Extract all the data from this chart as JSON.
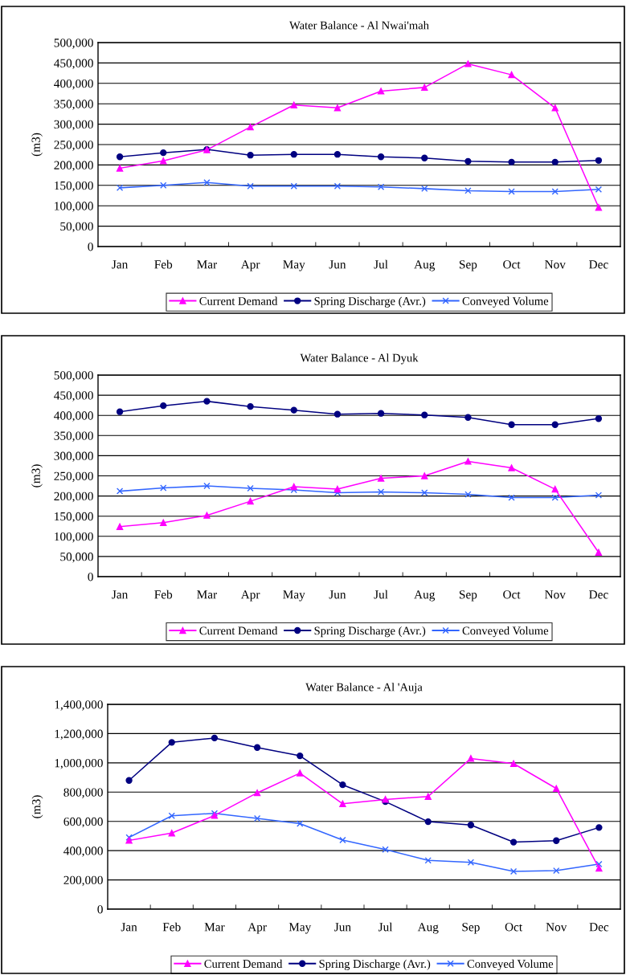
{
  "chart_data": [
    {
      "type": "line",
      "title": "Water Balance - Al Nwai'mah",
      "ylabel": "(m3)",
      "categories": [
        "Jan",
        "Feb",
        "Mar",
        "Apr",
        "May",
        "Jun",
        "Jul",
        "Aug",
        "Sep",
        "Oct",
        "Nov",
        "Dec"
      ],
      "series": [
        {
          "name": "Current Demand",
          "color": "#ff00ff",
          "marker": "triangle",
          "values": [
            192000,
            210000,
            237000,
            293000,
            347000,
            340000,
            381000,
            390000,
            448000,
            421000,
            340000,
            96000
          ]
        },
        {
          "name": "Spring Discharge (Avr.)",
          "color": "#000080",
          "marker": "circle",
          "values": [
            220000,
            230000,
            238000,
            224000,
            226000,
            226000,
            220000,
            217000,
            209000,
            207000,
            207000,
            211000
          ]
        },
        {
          "name": "Conveyed Volume",
          "color": "#3366ff",
          "marker": "cross",
          "values": [
            144000,
            150000,
            157000,
            148000,
            148000,
            148000,
            146000,
            142000,
            137000,
            135000,
            135000,
            140000
          ]
        }
      ],
      "ylim": [
        0,
        500000
      ],
      "yticks": [
        {
          "value": 0,
          "label": "0"
        },
        {
          "value": 50000,
          "label": "50,000"
        },
        {
          "value": 100000,
          "label": "100,000"
        },
        {
          "value": 150000,
          "label": "150,000"
        },
        {
          "value": 200000,
          "label": "200,000"
        },
        {
          "value": 250000,
          "label": "250,000"
        },
        {
          "value": 300000,
          "label": "300,000"
        },
        {
          "value": 350000,
          "label": "350,000"
        },
        {
          "value": 400000,
          "label": "400,000"
        },
        {
          "value": 450000,
          "label": "450,000"
        },
        {
          "value": 500000,
          "label": "500,000"
        }
      ],
      "grid": "y",
      "legend": "bottom",
      "line_style": "solid"
    },
    {
      "type": "line",
      "title": "Water Balance - Al Dyuk",
      "ylabel": "(m3)",
      "categories": [
        "Jan",
        "Feb",
        "Mar",
        "Apr",
        "May",
        "Jun",
        "Jul",
        "Aug",
        "Sep",
        "Oct",
        "Nov",
        "Dec"
      ],
      "series": [
        {
          "name": "Current Demand",
          "color": "#ff00ff",
          "marker": "triangle",
          "values": [
            124000,
            134000,
            152000,
            187000,
            223000,
            217000,
            244000,
            250000,
            286000,
            270000,
            217000,
            60000
          ]
        },
        {
          "name": "Spring Discharge (Avr.)",
          "color": "#000080",
          "marker": "circle",
          "values": [
            409000,
            424000,
            435000,
            422000,
            413000,
            403000,
            405000,
            401000,
            395000,
            377000,
            377000,
            392000
          ]
        },
        {
          "name": "Conveyed Volume",
          "color": "#3366ff",
          "marker": "cross",
          "values": [
            212000,
            220000,
            225000,
            219000,
            215000,
            208000,
            210000,
            208000,
            204000,
            196000,
            196000,
            202000
          ]
        }
      ],
      "ylim": [
        0,
        500000
      ],
      "yticks": [
        {
          "value": 0,
          "label": "0"
        },
        {
          "value": 50000,
          "label": "50,000"
        },
        {
          "value": 100000,
          "label": "100,000"
        },
        {
          "value": 150000,
          "label": "150,000"
        },
        {
          "value": 200000,
          "label": "200,000"
        },
        {
          "value": 250000,
          "label": "250,000"
        },
        {
          "value": 300000,
          "label": "300,000"
        },
        {
          "value": 350000,
          "label": "350,000"
        },
        {
          "value": 400000,
          "label": "400,000"
        },
        {
          "value": 450000,
          "label": "450,000"
        },
        {
          "value": 500000,
          "label": "500,000"
        }
      ],
      "grid": "y",
      "legend": "bottom",
      "line_style": "solid"
    },
    {
      "type": "line",
      "title": "Water Balance - Al 'Auja",
      "ylabel": "(m3)",
      "categories": [
        "Jan",
        "Feb",
        "Mar",
        "Apr",
        "May",
        "Jun",
        "Jul",
        "Aug",
        "Sep",
        "Oct",
        "Nov",
        "Dec"
      ],
      "series": [
        {
          "name": "Current Demand",
          "color": "#ff00ff",
          "marker": "triangle",
          "values": [
            470000,
            520000,
            640000,
            795000,
            930000,
            720000,
            750000,
            770000,
            1030000,
            995000,
            825000,
            280000
          ]
        },
        {
          "name": "Spring Discharge (Avr.)",
          "color": "#000080",
          "marker": "circle",
          "values": [
            880000,
            1140000,
            1170000,
            1105000,
            1048000,
            850000,
            735000,
            598000,
            575000,
            458000,
            468000,
            558000
          ]
        },
        {
          "name": "Conveyed Volume",
          "color": "#3366ff",
          "marker": "cross",
          "values": [
            490000,
            638000,
            655000,
            620000,
            585000,
            472000,
            408000,
            333000,
            320000,
            258000,
            263000,
            308000
          ]
        }
      ],
      "ylim": [
        0,
        1400000
      ],
      "yticks": [
        {
          "value": 0,
          "label": "0"
        },
        {
          "value": 200000,
          "label": "200,000"
        },
        {
          "value": 400000,
          "label": "400,000"
        },
        {
          "value": 600000,
          "label": "600,000"
        },
        {
          "value": 800000,
          "label": "800,000"
        },
        {
          "value": 1000000,
          "label": "1,000,000"
        },
        {
          "value": 1200000,
          "label": "1,200,000"
        },
        {
          "value": 1400000,
          "label": "1,400,000"
        }
      ],
      "grid": "y",
      "legend": "bottom",
      "line_style": "solid"
    }
  ]
}
